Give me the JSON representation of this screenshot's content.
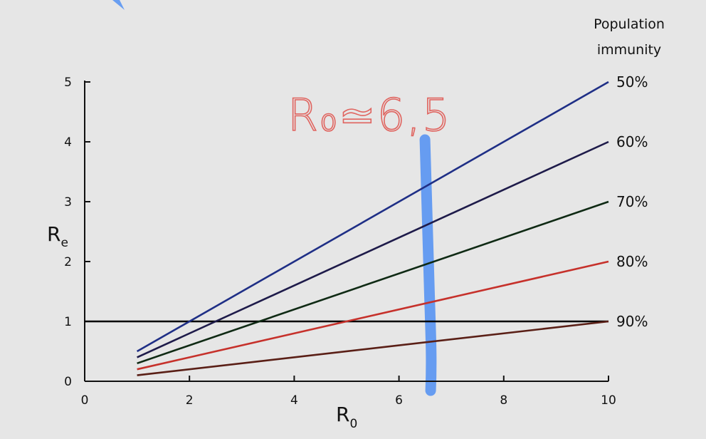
{
  "chart_data": {
    "type": "line",
    "x_axis": {
      "ticks": [
        0,
        2,
        4,
        6,
        8,
        10
      ],
      "range": [
        0,
        10
      ],
      "label_main": "R",
      "label_sub": "0"
    },
    "y_axis": {
      "ticks": [
        0,
        1,
        2,
        3,
        4,
        5
      ],
      "range": [
        0,
        5
      ],
      "label_main": "R",
      "label_sub": "e"
    },
    "legend_title_lines": [
      "Population",
      "immunity"
    ],
    "legend_placement": "right",
    "series": [
      {
        "name": "50%",
        "color": "#1f2f86",
        "x": [
          1,
          10
        ],
        "y": [
          0.5,
          5.0
        ]
      },
      {
        "name": "60%",
        "color": "#1e1b4a",
        "x": [
          1,
          10
        ],
        "y": [
          0.4,
          4.0
        ]
      },
      {
        "name": "70%",
        "color": "#0f2a14",
        "x": [
          1,
          10
        ],
        "y": [
          0.3,
          3.0
        ]
      },
      {
        "name": "80%",
        "color": "#c6312b",
        "x": [
          1,
          10
        ],
        "y": [
          0.2,
          2.0
        ]
      },
      {
        "name": "90%",
        "color": "#5a1f16",
        "x": [
          1,
          10
        ],
        "y": [
          0.1,
          1.0
        ]
      }
    ],
    "reference_line": {
      "y": 1,
      "color": "#000000"
    },
    "annotation": {
      "text": "R₀≃6,5",
      "color": "#e0645f"
    },
    "highlight_marker": {
      "x": 6.55,
      "color": "#5b96f2"
    },
    "grid": false
  },
  "colors": {
    "background": "#e6e6e6",
    "axis": "#111111"
  }
}
